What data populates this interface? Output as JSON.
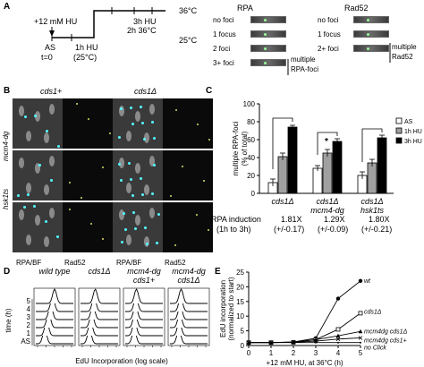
{
  "panelA": {
    "label": "A",
    "hu": "+12 mM HU",
    "as": "AS",
    "t0": "t=0",
    "hu1h": "1h HU",
    "temp25p": "(25°C)",
    "hu3h": "3h HU",
    "h2_36": "2h 36°C",
    "t36": "36°C",
    "t25": "25°C",
    "rpa_title": "RPA",
    "rad52_title": "Rad52",
    "rpa_rows": [
      "no foci",
      "1 focus",
      "2 foci",
      "3+ foci"
    ],
    "rpa_multiple": "multiple",
    "rpa_foci": "RPA-foci",
    "rad52_rows": [
      "no foci",
      "1 focus",
      "2+ foci"
    ],
    "rad52_multiple": "multiple",
    "rad52_label": "Rad52"
  },
  "panelB": {
    "label": "B",
    "col1": "cds1+",
    "col2": "cds1Δ",
    "rows": [
      "mcm4-dg",
      "hsk1ts"
    ],
    "xlabels": [
      "RPA/BF",
      "Rad52",
      "RPA/BF",
      "Rad52"
    ]
  },
  "panelC": {
    "label": "C",
    "chart_data": {
      "type": "bar",
      "ylabel": "multiple RPA-foci (% of total)",
      "ylim": [
        0,
        100
      ],
      "yticks": [
        0,
        20,
        40,
        60,
        80,
        100
      ],
      "categories": [
        "cds1Δ",
        "cds1Δ mcm4-dg",
        "cds1Δ hsk1ts"
      ],
      "series": [
        {
          "name": "AS",
          "values": [
            12,
            28,
            20
          ],
          "errors": [
            4,
            3,
            4
          ],
          "color": "#ffffff"
        },
        {
          "name": "1h HU",
          "values": [
            41,
            45,
            34
          ],
          "errors": [
            4,
            4,
            4
          ],
          "color": "#a0a0a0"
        },
        {
          "name": "3h HU",
          "values": [
            74,
            58,
            62
          ],
          "errors": [
            2,
            3,
            3
          ],
          "color": "#000000"
        }
      ],
      "legend": "right",
      "significance": [
        "",
        "*",
        ""
      ]
    },
    "cat_lines": [
      [
        "cds1Δ"
      ],
      [
        "cds1Δ",
        "mcm4-dg"
      ],
      [
        "cds1Δ",
        "hsk1ts"
      ]
    ],
    "induction_label1": "RPA induction",
    "induction_label2": "(1h to 3h)",
    "induction_values": [
      "1.81X",
      "1.29X",
      "1.80X"
    ],
    "induction_errors": [
      "(+/-0.17)",
      "(+/-0.09)",
      "(+/-0.21)"
    ]
  },
  "panelD": {
    "label": "D",
    "titles": [
      [
        "wild type"
      ],
      [
        "cds1Δ"
      ],
      [
        "mcm4-dg",
        "cds1+"
      ],
      [
        "mcm4-dg",
        "cds1Δ"
      ]
    ],
    "ylabel": "time (h)",
    "yticks": [
      "5",
      "4",
      "3",
      "2",
      "1",
      "AS"
    ],
    "xlabel": "EdU Incorporation (log scale)"
  },
  "panelE": {
    "label": "E",
    "chart_data": {
      "type": "line",
      "ylabel": "EdU incorporation (normalized to start)",
      "xlabel": "+12 mM HU, at 36°C (h)",
      "x": [
        0,
        1,
        2,
        3,
        4,
        5
      ],
      "ylim": [
        0,
        25
      ],
      "yticks": [
        0,
        5,
        10,
        15,
        20,
        25
      ],
      "series": [
        {
          "name": "wt",
          "values": [
            1,
            1,
            1.2,
            2.5,
            16,
            22
          ],
          "marker": "filled-circle"
        },
        {
          "name": "cds1Δ",
          "values": [
            1,
            1,
            1.1,
            2,
            5.5,
            11
          ],
          "marker": "open-square"
        },
        {
          "name": "mcm4dg cds1Δ",
          "values": [
            1,
            1,
            1.2,
            2,
            3.3,
            4.8
          ],
          "marker": "triangle"
        },
        {
          "name": "mcm4dg cds1+",
          "values": [
            1,
            1,
            1.1,
            1.5,
            2.2,
            2.6
          ],
          "marker": "cross"
        },
        {
          "name": "no Click",
          "values": [
            1,
            1,
            1,
            1,
            1,
            1
          ],
          "marker": "dot"
        }
      ]
    }
  }
}
